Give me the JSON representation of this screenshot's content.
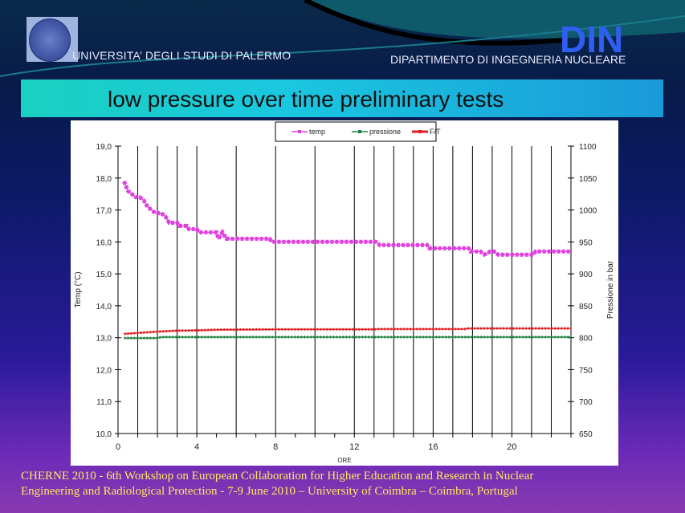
{
  "header": {
    "university": "UNIVERSITA’  DEGLI  STUDI  DI PALERMO",
    "logo_text": "DIN",
    "department": "DIPARTIMENTO DI  INGEGNERIA NUCLEARE"
  },
  "slide": {
    "title": "low pressure over time preliminary tests"
  },
  "footer": {
    "line1": "CHERNE 2010 - 6th Workshop on European Collaboration for  Higher Education and Research in Nuclear",
    "line2": "Engineering and Radiological Protection  -  7-9  June 2010 – University of Coimbra – Coimbra, Portugal"
  },
  "chart_data": {
    "type": "line",
    "title": "",
    "xlabel": "ORE",
    "ylabel": "Temp (°C)",
    "y2label": "Pressione in bar",
    "xlim": [
      0,
      23
    ],
    "ylim": [
      10,
      19
    ],
    "y2lim": [
      650,
      1100
    ],
    "xticks": [
      "0",
      "4",
      "8",
      "12",
      "16",
      "20"
    ],
    "xtick_values": [
      0,
      4,
      8,
      12,
      16,
      20
    ],
    "vertical_gridlines": [
      1,
      2,
      3,
      4,
      6,
      8,
      10,
      12,
      13,
      14,
      15,
      16,
      17,
      18,
      19,
      20,
      21,
      22
    ],
    "yticks": [
      "19,0",
      "18,0",
      "17,0",
      "16,0",
      "15,0",
      "14,0",
      "13,0",
      "12,0",
      "11,0",
      "10,0"
    ],
    "y2ticks": [
      "1100",
      "1050",
      "1000",
      "950",
      "900",
      "850",
      "800",
      "750",
      "700",
      "650"
    ],
    "legend_position": "top-center",
    "series": [
      {
        "name": "temp",
        "axis": "left",
        "color": "#e040e0",
        "points": [
          [
            0.3,
            17.9
          ],
          [
            0.5,
            17.6
          ],
          [
            0.7,
            17.5
          ],
          [
            0.9,
            17.4
          ],
          [
            1.1,
            17.4
          ],
          [
            1.3,
            17.3
          ],
          [
            1.5,
            17.1
          ],
          [
            1.7,
            17.0
          ],
          [
            1.9,
            16.9
          ],
          [
            2.2,
            16.9
          ],
          [
            2.4,
            16.8
          ],
          [
            2.6,
            16.6
          ],
          [
            3.0,
            16.6
          ],
          [
            3.1,
            16.5
          ],
          [
            3.5,
            16.5
          ],
          [
            3.6,
            16.4
          ],
          [
            4.0,
            16.4
          ],
          [
            4.1,
            16.3
          ],
          [
            5.0,
            16.3
          ],
          [
            5.1,
            16.1
          ],
          [
            5.3,
            16.3
          ],
          [
            5.5,
            16.1
          ],
          [
            7.7,
            16.1
          ],
          [
            7.8,
            16.0
          ],
          [
            13.1,
            16.0
          ],
          [
            13.3,
            15.9
          ],
          [
            15.7,
            15.9
          ],
          [
            15.8,
            15.8
          ],
          [
            17.8,
            15.8
          ],
          [
            17.9,
            15.7
          ],
          [
            18.4,
            15.7
          ],
          [
            18.6,
            15.6
          ],
          [
            18.9,
            15.7
          ],
          [
            19.1,
            15.7
          ],
          [
            19.3,
            15.6
          ],
          [
            21.1,
            15.6
          ],
          [
            21.2,
            15.7
          ],
          [
            23.0,
            15.7
          ]
        ]
      },
      {
        "name": "pressione",
        "axis": "right",
        "color": "#208040",
        "points": [
          [
            0.3,
            799.5
          ],
          [
            2.0,
            799.5
          ],
          [
            2.2,
            801
          ],
          [
            23.0,
            801
          ]
        ]
      },
      {
        "name": "F/T",
        "axis": "left",
        "color": "#e02020",
        "points": [
          [
            0.3,
            13.12
          ],
          [
            1.0,
            13.15
          ],
          [
            2.0,
            13.19
          ],
          [
            3.0,
            13.22
          ],
          [
            4.0,
            13.23
          ],
          [
            5.0,
            13.25
          ],
          [
            8.0,
            13.26
          ],
          [
            13.0,
            13.26
          ],
          [
            13.2,
            13.27
          ],
          [
            17.6,
            13.27
          ],
          [
            17.8,
            13.29
          ],
          [
            23.0,
            13.29
          ]
        ]
      }
    ]
  }
}
